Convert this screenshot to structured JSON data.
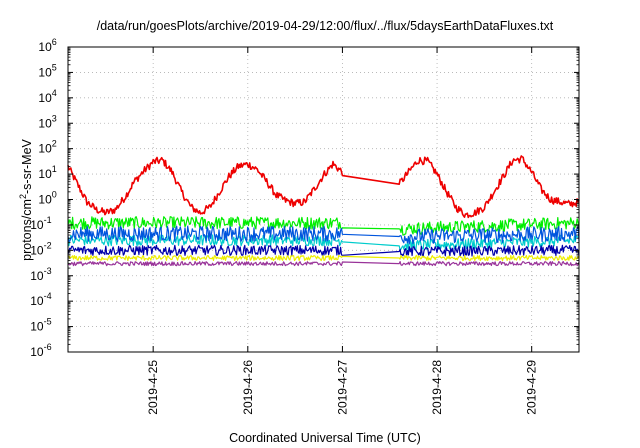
{
  "chart_data": {
    "type": "line",
    "title": "/data/run/goesPlots/archive/2019-04-29/12:00/flux/../flux/5daysEarthDataFluxes.txt",
    "xlabel": "Coordinated Universal Time (UTC)",
    "ylabel": {
      "prefix": "protons/cm",
      "sup": "2",
      "suffix": "-s-sr-MeV"
    },
    "xlim": [
      "2019-04-24 02:24",
      "2019-04-29 12:00"
    ],
    "ylim": [
      1e-06,
      1000000.0
    ],
    "yscale": "log",
    "grid": true,
    "x_ticks": [
      {
        "date": "2019-04-25",
        "label": "2019-4-25"
      },
      {
        "date": "2019-04-26",
        "label": "2019-4-26"
      },
      {
        "date": "2019-04-27",
        "label": "2019-4-27"
      },
      {
        "date": "2019-04-28",
        "label": "2019-4-28"
      },
      {
        "date": "2019-04-29",
        "label": "2019-4-29"
      }
    ],
    "y_ticks": [
      {
        "exp": "-6",
        "value": 1e-06
      },
      {
        "exp": "-5",
        "value": 1e-05
      },
      {
        "exp": "-4",
        "value": 0.0001
      },
      {
        "exp": "-3",
        "value": 0.001
      },
      {
        "exp": "-2",
        "value": 0.01
      },
      {
        "exp": "-1",
        "value": 0.1
      },
      {
        "exp": "0",
        "value": 1
      },
      {
        "exp": "1",
        "value": 10
      },
      {
        "exp": "2",
        "value": 100
      },
      {
        "exp": "3",
        "value": 1000
      },
      {
        "exp": "4",
        "value": 10000
      },
      {
        "exp": "5",
        "value": 100000
      },
      {
        "exp": "6",
        "value": 1000000
      }
    ],
    "data_gap": [
      "2019-04-27 00:00",
      "2019-04-27 14:24"
    ],
    "series": [
      {
        "color": "#ee0000",
        "noise": 0.15,
        "points": [
          [
            "2019-04-24 02:24",
            20
          ],
          [
            "2019-04-24 04:48",
            4
          ],
          [
            "2019-04-24 07:12",
            0.8
          ],
          [
            "2019-04-24 09:36",
            0.4
          ],
          [
            "2019-04-24 12:00",
            0.3
          ],
          [
            "2019-04-24 14:24",
            0.4
          ],
          [
            "2019-04-24 16:48",
            1.2
          ],
          [
            "2019-04-24 19:12",
            5
          ],
          [
            "2019-04-24 21:36",
            13
          ],
          [
            "2019-04-25 00:00",
            30
          ],
          [
            "2019-04-25 02:24",
            35
          ],
          [
            "2019-04-25 04:48",
            12
          ],
          [
            "2019-04-25 07:12",
            2
          ],
          [
            "2019-04-25 09:36",
            0.5
          ],
          [
            "2019-04-25 12:00",
            0.3
          ],
          [
            "2019-04-25 14:24",
            0.5
          ],
          [
            "2019-04-25 16:48",
            2
          ],
          [
            "2019-04-25 19:12",
            8
          ],
          [
            "2019-04-25 21:36",
            20
          ],
          [
            "2019-04-26 00:00",
            25
          ],
          [
            "2019-04-26 02:24",
            15
          ],
          [
            "2019-04-26 04:48",
            5
          ],
          [
            "2019-04-26 07:12",
            1.5
          ],
          [
            "2019-04-26 09:36",
            0.9
          ],
          [
            "2019-04-26 12:00",
            0.7
          ],
          [
            "2019-04-26 14:24",
            0.8
          ],
          [
            "2019-04-26 16:48",
            2.5
          ],
          [
            "2019-04-26 19:12",
            9
          ],
          [
            "2019-04-26 21:36",
            25
          ],
          [
            "2019-04-27 00:00",
            12
          ],
          [
            "2019-04-27 14:24",
            4
          ],
          [
            "2019-04-27 16:48",
            12
          ],
          [
            "2019-04-27 19:12",
            35
          ],
          [
            "2019-04-27 21:36",
            32
          ],
          [
            "2019-04-28 00:00",
            10
          ],
          [
            "2019-04-28 02:24",
            2
          ],
          [
            "2019-04-28 04:48",
            0.5
          ],
          [
            "2019-04-28 07:12",
            0.25
          ],
          [
            "2019-04-28 09:36",
            0.3
          ],
          [
            "2019-04-28 12:00",
            0.5
          ],
          [
            "2019-04-28 14:24",
            2
          ],
          [
            "2019-04-28 16:48",
            8
          ],
          [
            "2019-04-28 19:12",
            35
          ],
          [
            "2019-04-28 21:36",
            40
          ],
          [
            "2019-04-29 00:00",
            12
          ],
          [
            "2019-04-29 02:24",
            2.5
          ],
          [
            "2019-04-29 04:48",
            1
          ],
          [
            "2019-04-29 07:12",
            0.8
          ],
          [
            "2019-04-29 09:36",
            0.65
          ],
          [
            "2019-04-29 12:00",
            0.8
          ]
        ]
      },
      {
        "color": "#00ee00",
        "noise": 0.25,
        "points": [
          [
            "2019-04-24 02:24",
            0.12
          ],
          [
            "2019-04-27 00:00",
            0.12
          ],
          [
            "2019-04-27 14:24",
            0.07
          ],
          [
            "2019-04-29 12:00",
            0.12
          ]
        ]
      },
      {
        "color": "#00cccc",
        "noise": 0.22,
        "points": [
          [
            "2019-04-24 02:24",
            0.025
          ],
          [
            "2019-04-27 00:00",
            0.025
          ],
          [
            "2019-04-27 14:24",
            0.015
          ],
          [
            "2019-04-29 12:00",
            0.025
          ]
        ]
      },
      {
        "color": "#0055dd",
        "noise": 0.3,
        "points": [
          [
            "2019-04-24 02:24",
            0.045
          ],
          [
            "2019-04-27 00:00",
            0.045
          ],
          [
            "2019-04-27 14:24",
            0.035
          ],
          [
            "2019-04-29 12:00",
            0.045
          ]
        ]
      },
      {
        "color": "#0000aa",
        "noise": 0.2,
        "points": [
          [
            "2019-04-24 02:24",
            0.01
          ],
          [
            "2019-04-27 00:00",
            0.01
          ],
          [
            "2019-04-27 14:24",
            0.009
          ],
          [
            "2019-04-29 12:00",
            0.01
          ]
        ]
      },
      {
        "color": "#eeee00",
        "noise": 0.1,
        "points": [
          [
            "2019-04-24 02:24",
            0.005
          ],
          [
            "2019-04-27 00:00",
            0.005
          ],
          [
            "2019-04-27 14:24",
            0.005
          ],
          [
            "2019-04-29 12:00",
            0.005
          ]
        ]
      },
      {
        "color": "#993399",
        "noise": 0.08,
        "points": [
          [
            "2019-04-24 02:24",
            0.003
          ],
          [
            "2019-04-27 00:00",
            0.003
          ],
          [
            "2019-04-27 14:24",
            0.003
          ],
          [
            "2019-04-29 12:00",
            0.003
          ]
        ]
      }
    ]
  }
}
